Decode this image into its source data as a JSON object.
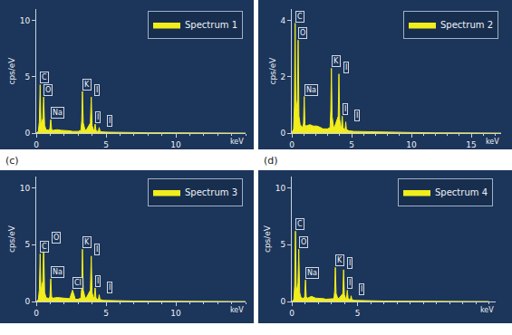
{
  "chart_data": [
    {
      "type": "area",
      "legend": "upper right",
      "grid": false,
      "xlabel": "keV",
      "ylabel": "cps/eV",
      "xlim": [
        0,
        15
      ],
      "ylim": [
        0,
        11
      ],
      "xticks": [
        0,
        5,
        10
      ],
      "yticks": [
        0,
        5,
        10
      ],
      "x": [
        0,
        0.15,
        0.22,
        0.28,
        0.34,
        0.4,
        0.47,
        0.53,
        0.6,
        0.7,
        0.9,
        0.98,
        1.04,
        1.1,
        1.2,
        1.5,
        1.8,
        2.1,
        2.4,
        2.6,
        2.8,
        3.0,
        3.2,
        3.26,
        3.31,
        3.37,
        3.5,
        3.6,
        3.88,
        3.94,
        4.0,
        4.1,
        4.16,
        4.22,
        4.28,
        4.4,
        4.46,
        4.51,
        4.57,
        4.8,
        5.2,
        6,
        7,
        8,
        9,
        10,
        12,
        14,
        15
      ],
      "series": [
        {
          "name": "Spectrum 1",
          "color": "#f2ee1c",
          "values": [
            0,
            0.15,
            1.0,
            4.3,
            0.9,
            1.0,
            1.3,
            3.2,
            0.7,
            0.3,
            0.25,
            0.4,
            1.2,
            0.35,
            0.25,
            0.3,
            0.25,
            0.25,
            0.2,
            0.15,
            0.15,
            0.15,
            0.25,
            1.1,
            3.7,
            0.9,
            0.25,
            0.3,
            0.9,
            3.2,
            0.7,
            0.25,
            0.3,
            0.8,
            0.25,
            0.15,
            0.2,
            0.5,
            0.15,
            0.1,
            0.08,
            0.05,
            0.04,
            0.03,
            0.03,
            0.02,
            0.01,
            0.01,
            0
          ]
        }
      ],
      "annotations": [
        {
          "text": "C",
          "x": 0.28,
          "y": 4.3
        },
        {
          "text": "O",
          "x": 0.53,
          "y": 3.2
        },
        {
          "text": "Na",
          "x": 1.04,
          "y": 1.2
        },
        {
          "text": "K",
          "x": 3.31,
          "y": 3.7
        },
        {
          "text": "I",
          "x": 3.94,
          "y": 3.2
        },
        {
          "text": "I",
          "x": 4.22,
          "y": 0.8
        },
        {
          "text": "I",
          "x": 4.51,
          "y": 0.5
        }
      ]
    },
    {
      "type": "area",
      "legend": "upper right",
      "grid": false,
      "xlabel": "keV",
      "ylabel": "cps/eV",
      "xlim": [
        0,
        17.5
      ],
      "ylim": [
        0,
        4.4
      ],
      "xticks": [
        0,
        5,
        10,
        15
      ],
      "yticks": [
        0,
        2,
        4
      ],
      "x": [
        0,
        0.15,
        0.22,
        0.28,
        0.34,
        0.4,
        0.47,
        0.53,
        0.6,
        0.7,
        0.9,
        0.98,
        1.04,
        1.1,
        1.2,
        1.5,
        1.8,
        2.1,
        2.4,
        2.6,
        2.8,
        3.0,
        3.2,
        3.26,
        3.31,
        3.37,
        3.5,
        3.6,
        3.88,
        3.94,
        4.0,
        4.1,
        4.16,
        4.22,
        4.28,
        4.4,
        4.46,
        4.51,
        4.57,
        4.8,
        5.2,
        6,
        7,
        8,
        9,
        10,
        12,
        14,
        15,
        16,
        17.5
      ],
      "series": [
        {
          "name": "Spectrum 2",
          "color": "#f2ee1c",
          "values": [
            0,
            0.15,
            1.0,
            3.9,
            0.8,
            0.9,
            1.2,
            3.3,
            0.6,
            0.3,
            0.2,
            0.35,
            1.3,
            0.3,
            0.25,
            0.3,
            0.25,
            0.25,
            0.2,
            0.15,
            0.15,
            0.15,
            0.2,
            0.8,
            2.3,
            0.6,
            0.2,
            0.25,
            0.6,
            2.1,
            0.5,
            0.2,
            0.25,
            0.6,
            0.2,
            0.12,
            0.15,
            0.4,
            0.12,
            0.08,
            0.06,
            0.05,
            0.04,
            0.03,
            0.03,
            0.02,
            0.01,
            0.01,
            0.01,
            0.01,
            0
          ]
        }
      ],
      "annotations": [
        {
          "text": "C",
          "x": 0.28,
          "y": 3.9
        },
        {
          "text": "O",
          "x": 0.53,
          "y": 3.3
        },
        {
          "text": "Na",
          "x": 1.04,
          "y": 1.3
        },
        {
          "text": "K",
          "x": 3.31,
          "y": 2.3
        },
        {
          "text": "I",
          "x": 3.94,
          "y": 2.1
        },
        {
          "text": "I",
          "x": 4.22,
          "y": 0.6
        },
        {
          "text": "I",
          "x": 4.51,
          "y": 0.4
        }
      ]
    },
    {
      "type": "area",
      "legend": "upper right",
      "grid": false,
      "xlabel": "keV",
      "ylabel": "cps/eV",
      "xlim": [
        0,
        15
      ],
      "ylim": [
        0,
        11
      ],
      "xticks": [
        0,
        5,
        10
      ],
      "yticks": [
        0,
        5,
        10
      ],
      "x": [
        0,
        0.15,
        0.22,
        0.28,
        0.34,
        0.4,
        0.47,
        0.53,
        0.6,
        0.7,
        0.9,
        0.98,
        1.04,
        1.1,
        1.2,
        1.5,
        1.8,
        2.1,
        2.4,
        2.6,
        2.8,
        3.0,
        3.2,
        3.26,
        3.31,
        3.37,
        3.5,
        3.6,
        3.88,
        3.94,
        4.0,
        4.1,
        4.16,
        4.22,
        4.28,
        4.4,
        4.46,
        4.51,
        4.57,
        4.8,
        5.2,
        6,
        7,
        8,
        9,
        10,
        12,
        14,
        15
      ],
      "series": [
        {
          "name": "Spectrum 3",
          "color": "#f2ee1c",
          "values": [
            0,
            0.15,
            1.0,
            4.2,
            1.0,
            1.3,
            1.8,
            5.0,
            0.8,
            0.35,
            0.25,
            0.45,
            2.0,
            0.4,
            0.3,
            0.35,
            0.3,
            0.3,
            0.25,
            1.0,
            0.2,
            0.2,
            0.3,
            1.2,
            4.6,
            1.0,
            0.3,
            0.35,
            1.0,
            4.0,
            0.8,
            0.3,
            0.4,
            1.2,
            0.3,
            0.18,
            0.22,
            0.6,
            0.18,
            0.1,
            0.08,
            0.05,
            0.04,
            0.03,
            0.03,
            0.02,
            0.01,
            0.01,
            0
          ]
        }
      ],
      "annotations": [
        {
          "text": "(c)"
        },
        {
          "text": "C",
          "x": 0.28,
          "y": 4.2
        },
        {
          "text": "O",
          "x": 0.53,
          "y": 5.0
        },
        {
          "text": "Na",
          "x": 1.04,
          "y": 2.0
        },
        {
          "text": "Cl",
          "x": 2.6,
          "y": 1.0
        },
        {
          "text": "K",
          "x": 3.31,
          "y": 4.6
        },
        {
          "text": "I",
          "x": 3.94,
          "y": 4.0
        },
        {
          "text": "I",
          "x": 4.22,
          "y": 1.2
        },
        {
          "text": "I",
          "x": 4.51,
          "y": 0.6
        }
      ]
    },
    {
      "type": "area",
      "legend": "upper right",
      "grid": false,
      "xlabel": "keV",
      "ylabel": "cps/eV",
      "xlim": [
        0,
        15.5
      ],
      "ylim": [
        0,
        11
      ],
      "xticks": [
        0,
        5
      ],
      "yticks": [
        0,
        5,
        10
      ],
      "x": [
        0,
        0.15,
        0.22,
        0.28,
        0.34,
        0.4,
        0.47,
        0.53,
        0.6,
        0.7,
        0.9,
        0.98,
        1.04,
        1.1,
        1.2,
        1.5,
        1.8,
        2.1,
        2.4,
        2.6,
        2.8,
        3.0,
        3.2,
        3.26,
        3.31,
        3.37,
        3.5,
        3.6,
        3.88,
        3.94,
        4.0,
        4.1,
        4.16,
        4.22,
        4.28,
        4.4,
        4.46,
        4.51,
        4.57,
        4.8,
        5.2,
        6,
        7,
        8,
        9,
        10,
        12,
        14,
        15
      ],
      "series": [
        {
          "name": "Spectrum 4",
          "color": "#f2ee1c",
          "values": [
            0,
            0.15,
            1.4,
            6.2,
            1.1,
            1.2,
            1.6,
            4.6,
            0.8,
            0.35,
            0.25,
            0.45,
            1.9,
            0.4,
            0.3,
            0.45,
            0.3,
            0.3,
            0.25,
            0.2,
            0.2,
            0.2,
            0.25,
            0.9,
            3.0,
            0.7,
            0.25,
            0.3,
            0.7,
            2.8,
            0.6,
            0.25,
            0.3,
            1.0,
            0.3,
            0.15,
            0.2,
            0.5,
            0.15,
            0.1,
            0.08,
            0.05,
            0.04,
            0.03,
            0.03,
            0.02,
            0.01,
            0.01,
            0
          ]
        }
      ],
      "annotations": [
        {
          "text": "(d)"
        },
        {
          "text": "C",
          "x": 0.28,
          "y": 6.2
        },
        {
          "text": "O",
          "x": 0.53,
          "y": 4.6
        },
        {
          "text": "Na",
          "x": 1.04,
          "y": 1.9
        },
        {
          "text": "K",
          "x": 3.31,
          "y": 3.0
        },
        {
          "text": "I",
          "x": 3.94,
          "y": 2.8
        },
        {
          "text": "I",
          "x": 4.22,
          "y": 1.0
        },
        {
          "text": "I",
          "x": 4.51,
          "y": 0.5
        }
      ]
    }
  ]
}
